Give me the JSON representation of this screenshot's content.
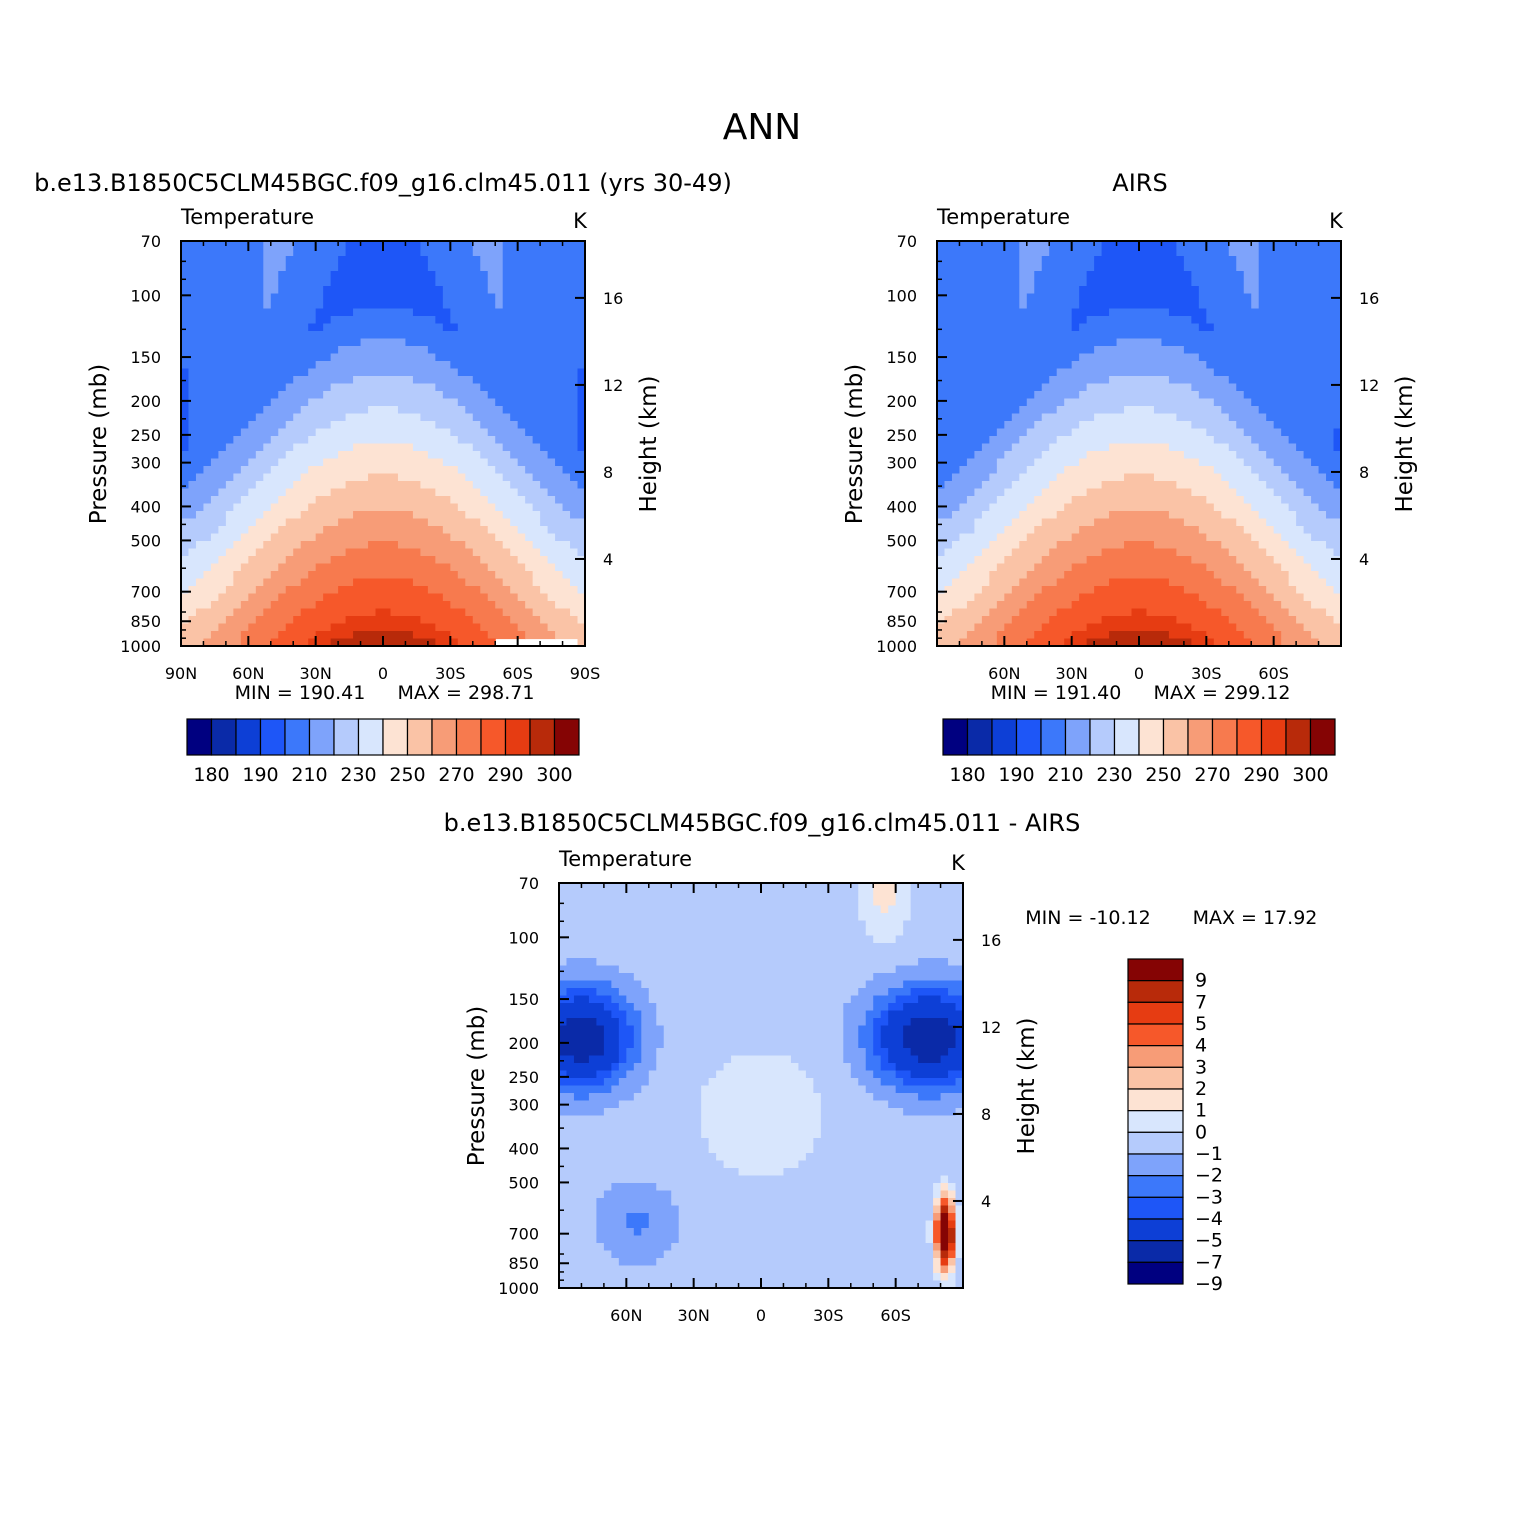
{
  "title": "ANN",
  "colors": {
    "abs_palette": [
      "#000080",
      "#0a2aa8",
      "#0d3fd6",
      "#1e56f7",
      "#3c78fa",
      "#7ea3fb",
      "#b5cbfc",
      "#d8e6fd",
      "#fde3d3",
      "#fac3a6",
      "#f79c77",
      "#f77a4e",
      "#f6582a",
      "#e63c12",
      "#b82a0a",
      "#850404"
    ],
    "diff_palette": [
      "#000080",
      "#0a2aa8",
      "#0d3fd6",
      "#1e56f7",
      "#3c78fa",
      "#7ea3fb",
      "#b5cbfc",
      "#d8e6fd",
      "#fde3d3",
      "#fac3a6",
      "#f79c77",
      "#f6582a",
      "#e63c12",
      "#b82a0a",
      "#850404"
    ]
  },
  "chart_data": [
    {
      "type": "heatmap",
      "panel": "model",
      "title": "b.e13.B1850C5CLM45BGC.f09_g16.clm45.011 (yrs 30-49)",
      "left_title": "Temperature",
      "units": "K",
      "ylabel": "Pressure (mb)",
      "ylabel2": "Height (km)",
      "x_ticks": [
        "90N",
        "60N",
        "30N",
        "0",
        "30S",
        "60S",
        "90S"
      ],
      "y_ticks": [
        "70",
        "100",
        "150",
        "200",
        "250",
        "300",
        "400",
        "500",
        "700",
        "850",
        "1000"
      ],
      "y2_ticks": [
        "16",
        "12",
        "8",
        "4"
      ],
      "ylim": [
        70,
        1000
      ],
      "xlim": [
        "90N",
        "90S"
      ],
      "min_label": "MIN = 190.41",
      "max_label": "MAX = 298.71",
      "colorbar_labels": [
        "180",
        "190",
        "210",
        "230",
        "250",
        "270",
        "290",
        "300"
      ]
    },
    {
      "type": "heatmap",
      "panel": "obs",
      "title": "AIRS",
      "left_title": "Temperature",
      "units": "K",
      "ylabel": "Pressure (mb)",
      "ylabel2": "Height (km)",
      "x_ticks": [
        "60N",
        "30N",
        "0",
        "30S",
        "60S"
      ],
      "y_ticks": [
        "70",
        "100",
        "150",
        "200",
        "250",
        "300",
        "400",
        "500",
        "700",
        "850",
        "1000"
      ],
      "y2_ticks": [
        "16",
        "12",
        "8",
        "4"
      ],
      "ylim": [
        70,
        1000
      ],
      "min_label": "MIN = 191.40",
      "max_label": "MAX = 299.12",
      "colorbar_labels": [
        "180",
        "190",
        "210",
        "230",
        "250",
        "270",
        "290",
        "300"
      ]
    },
    {
      "type": "heatmap",
      "panel": "difference",
      "title": "b.e13.B1850C5CLM45BGC.f09_g16.clm45.011 - AIRS",
      "left_title": "Temperature",
      "units": "K",
      "ylabel": "Pressure (mb)",
      "ylabel2": "Height (km)",
      "x_ticks": [
        "60N",
        "30N",
        "0",
        "30S",
        "60S"
      ],
      "y_ticks": [
        "70",
        "100",
        "150",
        "200",
        "250",
        "300",
        "400",
        "500",
        "700",
        "850",
        "1000"
      ],
      "y2_ticks": [
        "16",
        "12",
        "8",
        "4"
      ],
      "ylim": [
        70,
        1000
      ],
      "min_label": "MIN = -10.12",
      "max_label": "MAX = 17.92",
      "colorbar_labels": [
        "9",
        "7",
        "5",
        "4",
        "3",
        "2",
        "1",
        "0",
        "-1",
        "-2",
        "-3",
        "-4",
        "-5",
        "-7",
        "-9"
      ]
    }
  ]
}
